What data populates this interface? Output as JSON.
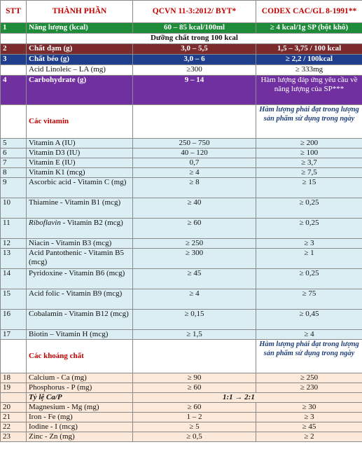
{
  "header": {
    "stt": "STT",
    "name": "THÀNH PHẦN",
    "qcvn": "QCVN 11-3:2012/ BYT*",
    "codex": "CODEX CAC/GL 8-1991**"
  },
  "energy": {
    "stt": "1",
    "name": "Năng lượng (kcal)",
    "qcvn": "60 – 85 kcal/100ml",
    "codex": "≥ 4 kcal/1g SP (bột khô)"
  },
  "subheader": "Dưỡng chất trong 100 kcal",
  "protein": {
    "stt": "2",
    "name": "Chất đạm (g)",
    "qcvn": "3,0 – 5,5",
    "codex": "1,5 – 3,75 / 100 kcal"
  },
  "fat": {
    "stt": "3",
    "name": "Chất béo (g)",
    "qcvn": "3,0 – 6",
    "codex": "≥ 2,2 / 100kcal"
  },
  "linoleic": {
    "stt": "",
    "name": "Acid Linoleic – LA (mg)",
    "qcvn": "≥300",
    "codex": "≥ 333mg"
  },
  "carb": {
    "stt": "4",
    "name": "Carbohydrate (g)",
    "qcvn": "9 – 14",
    "codex": "Hàm lượng đáp ứng yêu cầu về năng lượng của SP***"
  },
  "vitamins": {
    "title": "Các vitamin",
    "note": "Hàm lượng phải đạt trong lượng sản phẩm sử dụng trong ngày",
    "rows": [
      {
        "stt": "5",
        "name": "Vitamin A (IU)",
        "qcvn": "250 – 750",
        "codex": "≥ 200"
      },
      {
        "stt": "6",
        "name": "Vitamin D3 (IU)",
        "qcvn": "40 – 120",
        "codex": "≥ 100"
      },
      {
        "stt": "7",
        "name": "Vitamin E (IU)",
        "qcvn": "0,7",
        "codex": "≥ 3,7"
      },
      {
        "stt": "8",
        "name": "Vitamin K1 (mcg)",
        "qcvn": "≥ 4",
        "codex": "≥ 7,5"
      },
      {
        "stt": "9",
        "name": "Ascorbic acid - Vitamin C (mg)",
        "qcvn": "≥ 8",
        "codex": "≥ 15"
      },
      {
        "stt": "10",
        "name": "Thiamine - Vitamin B1 (mcg)",
        "qcvn": "≥ 40",
        "codex": "≥ 0,25"
      },
      {
        "stt": "11",
        "name_italic": "Riboflavin",
        "name_rest": " - Vitamin B2 (mcg)",
        "qcvn": "≥ 60",
        "codex": "≥ 0,25"
      },
      {
        "stt": "12",
        "name": "Niacin - Vitamin B3 (mcg)",
        "qcvn": "≥ 250",
        "codex": "≥ 3"
      },
      {
        "stt": "13",
        "name": "Acid Pantothenic - Vitamin B5 (mcg)",
        "qcvn": "≥ 300",
        "codex": "≥ 1"
      },
      {
        "stt": "14",
        "name": "Pyridoxine - Vitamin B6 (mcg)",
        "qcvn": "≥ 45",
        "codex": "≥ 0,25"
      },
      {
        "stt": "15",
        "name": "Acid folic - Vitamin B9 (mcg)",
        "qcvn": "≥ 4",
        "codex": "≥ 75"
      },
      {
        "stt": "16",
        "name": "Cobalamin - Vitamin B12 (mcg)",
        "qcvn": "≥ 0,15",
        "codex": "≥ 0,45"
      },
      {
        "stt": "17",
        "name": "Biotin – Vitamin H (mcg)",
        "qcvn": "≥ 1,5",
        "codex": "≥ 4"
      }
    ]
  },
  "minerals": {
    "title": "Các khoáng chất",
    "note": "Hàm lượng phải đạt trong lượng sản phẩm sử dụng trong ngày",
    "rows_a": [
      {
        "stt": "18",
        "name": "Calcium - Ca (mg)",
        "qcvn": "≥ 90",
        "codex": "≥ 250"
      },
      {
        "stt": "19",
        "name": "Phosphorus - P (mg)",
        "qcvn": "≥ 60",
        "codex": "≥ 230"
      }
    ],
    "ratio": {
      "name": "Tỷ lệ Ca/P",
      "qcvn": "1:1 → 2:1"
    },
    "rows_b": [
      {
        "stt": "20",
        "name": "Magnesium - Mg (mg)",
        "qcvn": "≥ 60",
        "codex": "≥ 30"
      },
      {
        "stt": "21",
        "name": "Iron - Fe (mg)",
        "qcvn": "1 – 2",
        "codex": "≥ 3"
      },
      {
        "stt": "22",
        "name": "Iodine - I (mcg)",
        "qcvn": "≥ 5",
        "codex": "≥ 45"
      },
      {
        "stt": "23",
        "name": "Zinc - Zn (mg)",
        "qcvn": "≥ 0,5",
        "codex": "≥ 2"
      }
    ]
  }
}
